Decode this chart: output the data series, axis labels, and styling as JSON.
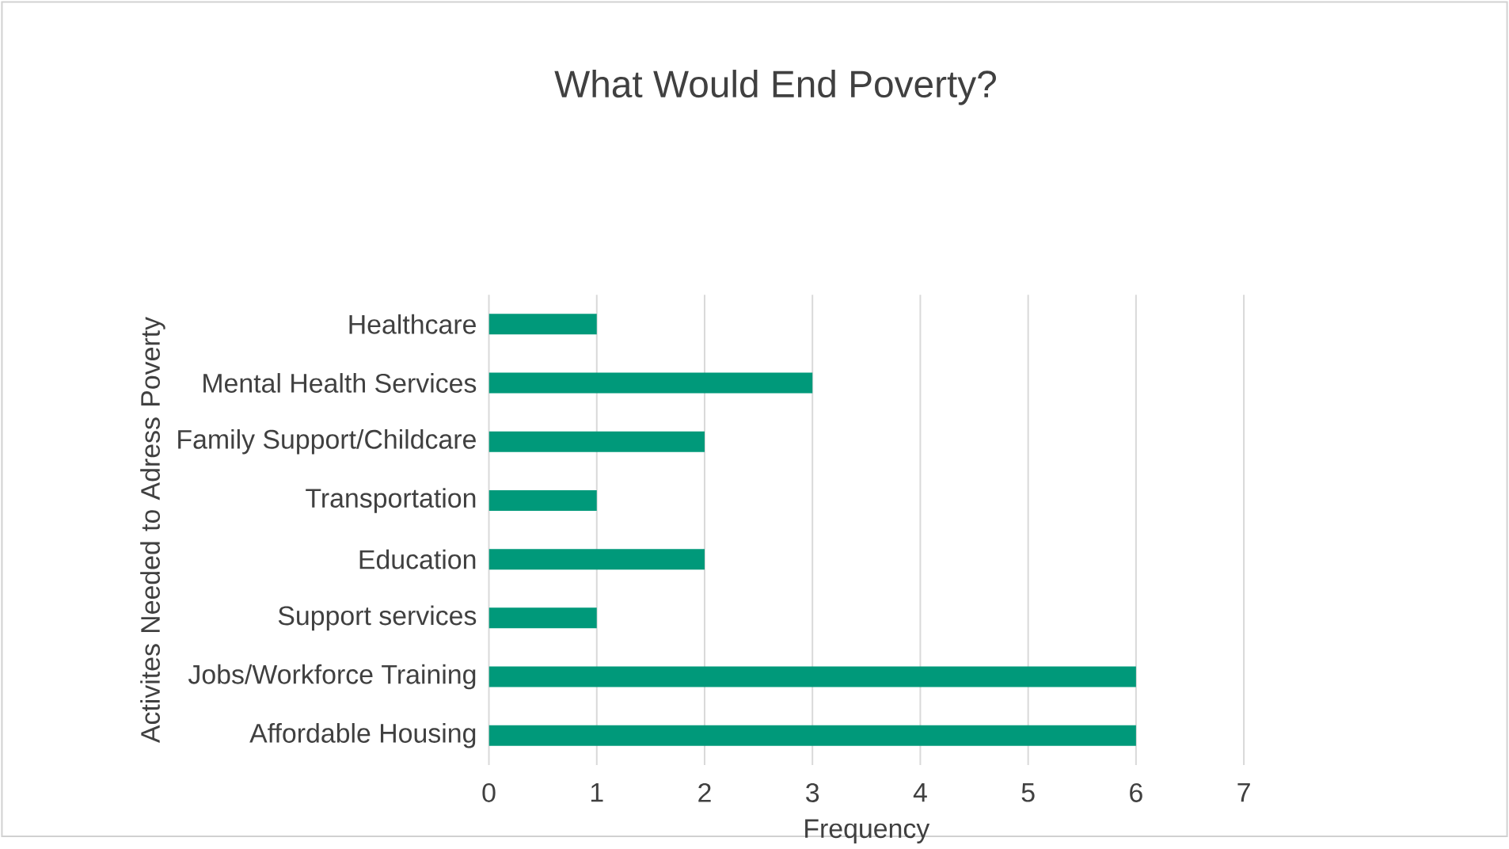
{
  "chart_data": {
    "type": "bar",
    "orientation": "horizontal",
    "title": "What Would End Poverty?",
    "xlabel": "Frequency",
    "ylabel": "Activites Needed to Adress Poverty",
    "categories": [
      "Healthcare",
      "Mental Health Services",
      "Family Support/Childcare",
      "Transportation",
      "Education",
      "Support services",
      "Jobs/Workforce Training",
      "Affordable Housing"
    ],
    "values": [
      1,
      3,
      2,
      1,
      2,
      1,
      6,
      6
    ],
    "color": "#00997a",
    "xlim": [
      0,
      7
    ],
    "xticks": [
      0,
      1,
      2,
      3,
      4,
      5,
      6,
      7
    ],
    "grid": "x"
  }
}
